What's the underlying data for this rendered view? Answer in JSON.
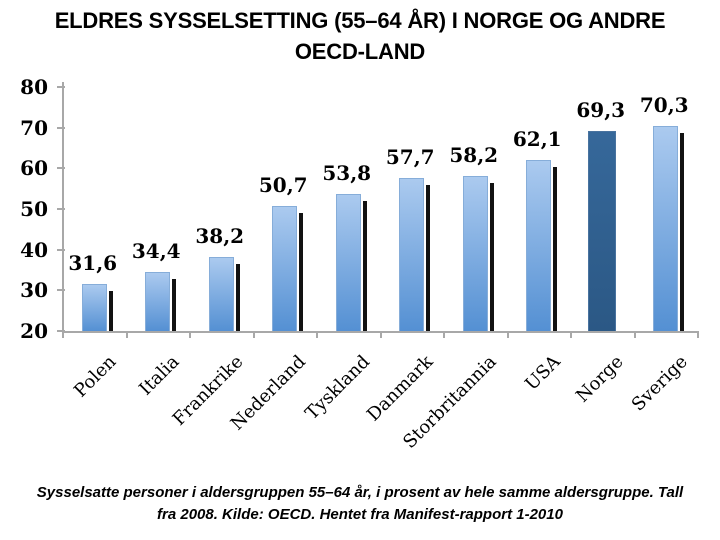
{
  "title": {
    "line1": "ELDRES SYSSELSETTING (55–64 ÅR) I NORGE OG ANDRE",
    "line2": "OECD-LAND"
  },
  "chart_data": {
    "type": "bar",
    "title": "ELDRES SYSSELSETTING (55–64 ÅR) I NORGE OG ANDRE OECD-LAND",
    "categories": [
      "Polen",
      "Italia",
      "Frankrike",
      "Nederland",
      "Tyskland",
      "Danmark",
      "Storbritannia",
      "USA",
      "Norge",
      "Sverige"
    ],
    "values": [
      31.6,
      34.4,
      38.2,
      50.7,
      53.8,
      57.7,
      58.2,
      62.1,
      69.3,
      70.3
    ],
    "value_labels": [
      "31,6",
      "34,4",
      "38,2",
      "50,7",
      "53,8",
      "57,7",
      "58,2",
      "62,1",
      "69,3",
      "70,3"
    ],
    "xlabel": "",
    "ylabel": "",
    "ylim": [
      20,
      80
    ],
    "yticks": [
      20,
      30,
      40,
      50,
      60,
      70,
      80
    ],
    "grid": false,
    "legend": false,
    "highlight_index": 8,
    "highlight_category": "Norge",
    "colors": {
      "bar_gradient_top": "#ABCAEF",
      "bar_gradient_bottom": "#5490D3",
      "bar_border": "#86ADD9",
      "highlight_bar": "#2E5E8C",
      "bar_shadow": "#121212",
      "axis": "#A8A8A8",
      "text": "#000000"
    }
  },
  "caption": {
    "line1": "Sysselsatte personer i aldersgruppen 55–64 år, i prosent av hele samme aldersgruppe. Tall",
    "line2": "fra 2008. Kilde: OECD. Hentet fra Manifest-rapport 1-2010"
  }
}
